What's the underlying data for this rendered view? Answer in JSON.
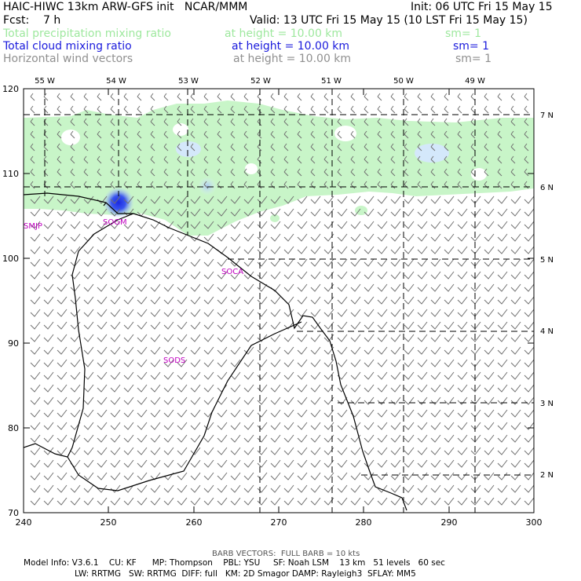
{
  "header": {
    "model_title": "HAIC-HIWC 13km ARW-GFS init   NCAR/MMM",
    "init": "Init: 06 UTC Fri 15 May 15",
    "fcst": "Fcst:    7 h",
    "valid": "Valid: 13 UTC Fri 15 May 15 (10 LST Fri 15 May 15)"
  },
  "fields": [
    {
      "name": "Total precipitation mixing ratio",
      "height": "at height = 10.00 km",
      "sm": "sm= 1",
      "color": "#9ee89e"
    },
    {
      "name": "Total cloud mixing ratio",
      "height": "at height = 10.00 km",
      "sm": "sm= 1",
      "color": "#1a1adc"
    },
    {
      "name": "Horizontal wind vectors",
      "height": "at height = 10.00 km",
      "sm": "sm= 1",
      "color": "#909090"
    }
  ],
  "map": {
    "x_axis_labels": [
      "240",
      "250",
      "260",
      "270",
      "280",
      "290",
      "300"
    ],
    "y_axis_labels": [
      "70",
      "80",
      "90",
      "100",
      "110",
      "120"
    ],
    "longitude_labels": [
      "55 W",
      "54 W",
      "53 W",
      "52 W",
      "51 W",
      "50 W",
      "49 W"
    ],
    "latitude_labels": [
      "7 N",
      "6 N",
      "5 N",
      "4 N",
      "3 N",
      "2 N"
    ],
    "stations": [
      "SMJP",
      "SOGM",
      "SOCA",
      "SODS"
    ],
    "colors": {
      "precip": "#c8f5c8",
      "precip_light": "#dff0ff",
      "cloud_core": "#1a28e0",
      "coast": "#000000",
      "station": "#c000c0",
      "barb": "#707070"
    }
  },
  "footer": {
    "barb_note": "BARB VECTORS:  FULL BARB = 10 kts",
    "model_info_1": "Model Info: V3.6.1    CU: KF      MP: Thompson    PBL: YSU     SF: Noah LSM    13 km   51 levels   60 sec",
    "model_info_2": "LW: RRTMG   SW: RRTMG  DIFF: full   KM: 2D Smagor DAMP: Rayleigh3  SFLAY: MM5"
  }
}
